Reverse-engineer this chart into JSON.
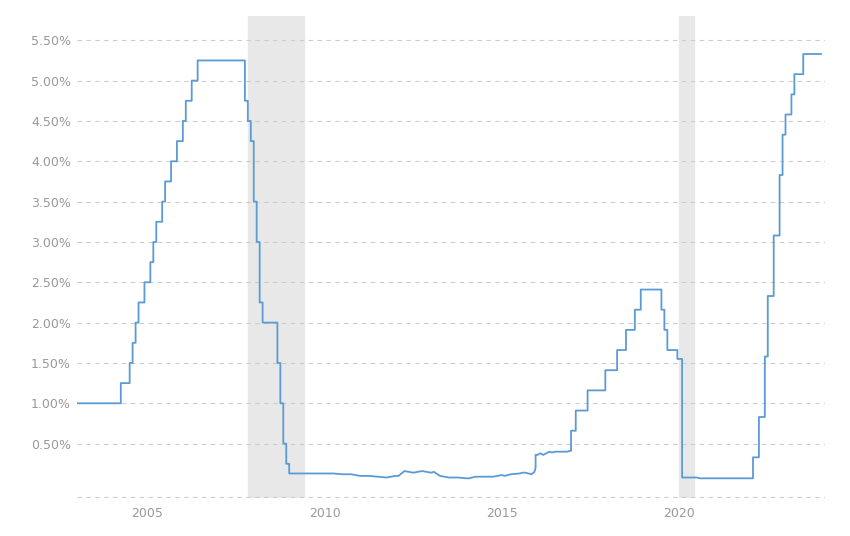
{
  "background_color": "#ffffff",
  "line_color": "#5b9bd5",
  "line_width": 1.3,
  "ylim": [
    -0.18,
    5.8
  ],
  "xlim": [
    2003.0,
    2024.1
  ],
  "yticks": [
    0.5,
    1.0,
    1.5,
    2.0,
    2.5,
    3.0,
    3.5,
    4.0,
    4.5,
    5.0,
    5.5
  ],
  "xticks": [
    2005,
    2010,
    2015,
    2020
  ],
  "recession_1_start": 2007.83,
  "recession_1_end": 2009.42,
  "recession_2_start": 2020.0,
  "recession_2_end": 2020.42,
  "recession_color": "#e8e8e8",
  "grid_color": "#cccccc",
  "tick_label_color": "#999999",
  "rate_data": [
    [
      2003.0,
      1.0
    ],
    [
      2003.01,
      1.0
    ],
    [
      2003.5,
      1.0
    ],
    [
      2003.5,
      1.0
    ],
    [
      2003.75,
      1.0
    ],
    [
      2003.75,
      1.0
    ],
    [
      2004.0,
      1.0
    ],
    [
      2004.0,
      1.0
    ],
    [
      2004.083,
      1.0
    ],
    [
      2004.083,
      1.0
    ],
    [
      2004.25,
      1.0
    ],
    [
      2004.25,
      1.25
    ],
    [
      2004.333,
      1.25
    ],
    [
      2004.333,
      1.25
    ],
    [
      2004.5,
      1.25
    ],
    [
      2004.5,
      1.5
    ],
    [
      2004.583,
      1.5
    ],
    [
      2004.583,
      1.75
    ],
    [
      2004.667,
      1.75
    ],
    [
      2004.667,
      2.0
    ],
    [
      2004.75,
      2.0
    ],
    [
      2004.75,
      2.25
    ],
    [
      2004.833,
      2.25
    ],
    [
      2004.833,
      2.25
    ],
    [
      2004.917,
      2.25
    ],
    [
      2004.917,
      2.5
    ],
    [
      2005.0,
      2.5
    ],
    [
      2005.0,
      2.5
    ],
    [
      2005.083,
      2.5
    ],
    [
      2005.083,
      2.75
    ],
    [
      2005.167,
      2.75
    ],
    [
      2005.167,
      3.0
    ],
    [
      2005.25,
      3.0
    ],
    [
      2005.25,
      3.25
    ],
    [
      2005.417,
      3.25
    ],
    [
      2005.417,
      3.5
    ],
    [
      2005.5,
      3.5
    ],
    [
      2005.5,
      3.75
    ],
    [
      2005.667,
      3.75
    ],
    [
      2005.667,
      4.0
    ],
    [
      2005.833,
      4.0
    ],
    [
      2005.833,
      4.25
    ],
    [
      2005.917,
      4.25
    ],
    [
      2005.917,
      4.25
    ],
    [
      2006.0,
      4.25
    ],
    [
      2006.0,
      4.5
    ],
    [
      2006.083,
      4.5
    ],
    [
      2006.083,
      4.75
    ],
    [
      2006.25,
      4.75
    ],
    [
      2006.25,
      5.0
    ],
    [
      2006.417,
      5.0
    ],
    [
      2006.417,
      5.25
    ],
    [
      2006.5,
      5.25
    ],
    [
      2006.5,
      5.25
    ],
    [
      2006.583,
      5.25
    ],
    [
      2006.583,
      5.25
    ],
    [
      2006.75,
      5.25
    ],
    [
      2006.75,
      5.25
    ],
    [
      2006.833,
      5.25
    ],
    [
      2006.833,
      5.25
    ],
    [
      2006.917,
      5.25
    ],
    [
      2006.917,
      5.25
    ],
    [
      2007.0,
      5.25
    ],
    [
      2007.0,
      5.25
    ],
    [
      2007.083,
      5.25
    ],
    [
      2007.083,
      5.25
    ],
    [
      2007.25,
      5.25
    ],
    [
      2007.25,
      5.25
    ],
    [
      2007.417,
      5.25
    ],
    [
      2007.417,
      5.25
    ],
    [
      2007.5,
      5.25
    ],
    [
      2007.5,
      5.25
    ],
    [
      2007.583,
      5.25
    ],
    [
      2007.583,
      5.25
    ],
    [
      2007.667,
      5.25
    ],
    [
      2007.667,
      5.25
    ],
    [
      2007.75,
      5.25
    ],
    [
      2007.75,
      5.25
    ],
    [
      2007.75,
      5.25
    ],
    [
      2007.75,
      4.75
    ],
    [
      2007.833,
      4.75
    ],
    [
      2007.833,
      4.5
    ],
    [
      2007.917,
      4.5
    ],
    [
      2007.917,
      4.25
    ],
    [
      2008.0,
      4.25
    ],
    [
      2008.0,
      3.5
    ],
    [
      2008.083,
      3.5
    ],
    [
      2008.083,
      3.0
    ],
    [
      2008.167,
      3.0
    ],
    [
      2008.167,
      2.25
    ],
    [
      2008.25,
      2.25
    ],
    [
      2008.25,
      2.0
    ],
    [
      2008.333,
      2.0
    ],
    [
      2008.333,
      2.0
    ],
    [
      2008.417,
      2.0
    ],
    [
      2008.417,
      2.0
    ],
    [
      2008.5,
      2.0
    ],
    [
      2008.5,
      2.0
    ],
    [
      2008.583,
      2.0
    ],
    [
      2008.583,
      2.0
    ],
    [
      2008.667,
      2.0
    ],
    [
      2008.667,
      1.5
    ],
    [
      2008.75,
      1.5
    ],
    [
      2008.75,
      1.0
    ],
    [
      2008.833,
      1.0
    ],
    [
      2008.833,
      0.5
    ],
    [
      2008.917,
      0.5
    ],
    [
      2008.917,
      0.25
    ],
    [
      2008.95,
      0.25
    ],
    [
      2008.95,
      0.25
    ],
    [
      2009.0,
      0.25
    ],
    [
      2009.0,
      0.13
    ],
    [
      2009.083,
      0.13
    ],
    [
      2009.083,
      0.13
    ],
    [
      2009.25,
      0.13
    ],
    [
      2009.5,
      0.13
    ],
    [
      2009.75,
      0.13
    ],
    [
      2010.0,
      0.13
    ],
    [
      2010.083,
      0.13
    ],
    [
      2010.25,
      0.13
    ],
    [
      2010.5,
      0.12
    ],
    [
      2010.75,
      0.12
    ],
    [
      2011.0,
      0.1
    ],
    [
      2011.083,
      0.1
    ],
    [
      2011.25,
      0.1
    ],
    [
      2011.5,
      0.09
    ],
    [
      2011.75,
      0.08
    ],
    [
      2012.0,
      0.1
    ],
    [
      2012.083,
      0.1
    ],
    [
      2012.25,
      0.16
    ],
    [
      2012.5,
      0.14
    ],
    [
      2012.75,
      0.16
    ],
    [
      2013.0,
      0.14
    ],
    [
      2013.083,
      0.15
    ],
    [
      2013.25,
      0.1
    ],
    [
      2013.5,
      0.08
    ],
    [
      2013.75,
      0.08
    ],
    [
      2014.0,
      0.07
    ],
    [
      2014.083,
      0.07
    ],
    [
      2014.25,
      0.09
    ],
    [
      2014.5,
      0.09
    ],
    [
      2014.75,
      0.09
    ],
    [
      2015.0,
      0.11
    ],
    [
      2015.083,
      0.1
    ],
    [
      2015.25,
      0.12
    ],
    [
      2015.5,
      0.13
    ],
    [
      2015.583,
      0.14
    ],
    [
      2015.667,
      0.14
    ],
    [
      2015.75,
      0.13
    ],
    [
      2015.833,
      0.12
    ],
    [
      2015.917,
      0.15
    ],
    [
      2015.95,
      0.2
    ],
    [
      2015.95,
      0.36
    ],
    [
      2016.0,
      0.36
    ],
    [
      2016.0,
      0.36
    ],
    [
      2016.083,
      0.38
    ],
    [
      2016.167,
      0.36
    ],
    [
      2016.25,
      0.38
    ],
    [
      2016.333,
      0.4
    ],
    [
      2016.417,
      0.39
    ],
    [
      2016.5,
      0.4
    ],
    [
      2016.583,
      0.4
    ],
    [
      2016.667,
      0.4
    ],
    [
      2016.75,
      0.4
    ],
    [
      2016.833,
      0.4
    ],
    [
      2016.917,
      0.41
    ],
    [
      2016.95,
      0.41
    ],
    [
      2016.95,
      0.66
    ],
    [
      2017.0,
      0.66
    ],
    [
      2017.083,
      0.66
    ],
    [
      2017.083,
      0.66
    ],
    [
      2017.083,
      0.91
    ],
    [
      2017.167,
      0.91
    ],
    [
      2017.25,
      0.91
    ],
    [
      2017.333,
      0.91
    ],
    [
      2017.417,
      0.91
    ],
    [
      2017.417,
      0.91
    ],
    [
      2017.417,
      1.16
    ],
    [
      2017.5,
      1.16
    ],
    [
      2017.583,
      1.16
    ],
    [
      2017.667,
      1.16
    ],
    [
      2017.75,
      1.16
    ],
    [
      2017.833,
      1.16
    ],
    [
      2017.917,
      1.16
    ],
    [
      2017.917,
      1.16
    ],
    [
      2017.917,
      1.41
    ],
    [
      2018.0,
      1.41
    ],
    [
      2018.083,
      1.41
    ],
    [
      2018.167,
      1.41
    ],
    [
      2018.25,
      1.41
    ],
    [
      2018.25,
      1.41
    ],
    [
      2018.25,
      1.66
    ],
    [
      2018.333,
      1.66
    ],
    [
      2018.417,
      1.66
    ],
    [
      2018.5,
      1.66
    ],
    [
      2018.5,
      1.66
    ],
    [
      2018.5,
      1.66
    ],
    [
      2018.5,
      1.91
    ],
    [
      2018.583,
      1.91
    ],
    [
      2018.667,
      1.91
    ],
    [
      2018.75,
      1.91
    ],
    [
      2018.75,
      1.91
    ],
    [
      2018.75,
      1.91
    ],
    [
      2018.75,
      2.16
    ],
    [
      2018.833,
      2.16
    ],
    [
      2018.917,
      2.16
    ],
    [
      2018.917,
      2.16
    ],
    [
      2018.917,
      2.41
    ],
    [
      2019.0,
      2.41
    ],
    [
      2019.083,
      2.41
    ],
    [
      2019.167,
      2.41
    ],
    [
      2019.25,
      2.41
    ],
    [
      2019.333,
      2.41
    ],
    [
      2019.417,
      2.41
    ],
    [
      2019.5,
      2.41
    ],
    [
      2019.5,
      2.41
    ],
    [
      2019.5,
      2.41
    ],
    [
      2019.5,
      2.16
    ],
    [
      2019.583,
      2.16
    ],
    [
      2019.583,
      2.16
    ],
    [
      2019.583,
      2.16
    ],
    [
      2019.583,
      1.91
    ],
    [
      2019.667,
      1.91
    ],
    [
      2019.667,
      1.91
    ],
    [
      2019.667,
      1.91
    ],
    [
      2019.667,
      1.66
    ],
    [
      2019.75,
      1.66
    ],
    [
      2019.833,
      1.66
    ],
    [
      2019.917,
      1.66
    ],
    [
      2019.917,
      1.66
    ],
    [
      2019.95,
      1.66
    ],
    [
      2019.95,
      1.55
    ],
    [
      2020.0,
      1.55
    ],
    [
      2020.0,
      1.55
    ],
    [
      2020.083,
      1.55
    ],
    [
      2020.083,
      0.08
    ],
    [
      2020.25,
      0.08
    ],
    [
      2020.333,
      0.08
    ],
    [
      2020.417,
      0.08
    ],
    [
      2020.5,
      0.08
    ],
    [
      2020.583,
      0.07
    ],
    [
      2020.667,
      0.07
    ],
    [
      2020.75,
      0.07
    ],
    [
      2020.833,
      0.07
    ],
    [
      2020.917,
      0.07
    ],
    [
      2021.0,
      0.07
    ],
    [
      2021.083,
      0.07
    ],
    [
      2021.25,
      0.07
    ],
    [
      2021.417,
      0.07
    ],
    [
      2021.5,
      0.07
    ],
    [
      2021.583,
      0.07
    ],
    [
      2021.667,
      0.07
    ],
    [
      2021.75,
      0.07
    ],
    [
      2021.833,
      0.07
    ],
    [
      2021.917,
      0.07
    ],
    [
      2022.0,
      0.07
    ],
    [
      2022.0,
      0.07
    ],
    [
      2022.083,
      0.07
    ],
    [
      2022.083,
      0.07
    ],
    [
      2022.083,
      0.33
    ],
    [
      2022.167,
      0.33
    ],
    [
      2022.25,
      0.33
    ],
    [
      2022.25,
      0.33
    ],
    [
      2022.25,
      0.83
    ],
    [
      2022.333,
      0.83
    ],
    [
      2022.417,
      0.83
    ],
    [
      2022.417,
      0.83
    ],
    [
      2022.417,
      1.58
    ],
    [
      2022.5,
      1.58
    ],
    [
      2022.5,
      1.58
    ],
    [
      2022.5,
      1.58
    ],
    [
      2022.5,
      2.33
    ],
    [
      2022.583,
      2.33
    ],
    [
      2022.583,
      2.33
    ],
    [
      2022.583,
      2.33
    ],
    [
      2022.583,
      2.33
    ],
    [
      2022.667,
      2.33
    ],
    [
      2022.667,
      2.33
    ],
    [
      2022.667,
      2.33
    ],
    [
      2022.667,
      3.08
    ],
    [
      2022.75,
      3.08
    ],
    [
      2022.833,
      3.08
    ],
    [
      2022.833,
      3.08
    ],
    [
      2022.833,
      3.83
    ],
    [
      2022.917,
      3.83
    ],
    [
      2022.917,
      3.83
    ],
    [
      2022.917,
      3.83
    ],
    [
      2022.917,
      4.33
    ],
    [
      2023.0,
      4.33
    ],
    [
      2023.0,
      4.33
    ],
    [
      2023.0,
      4.33
    ],
    [
      2023.0,
      4.58
    ],
    [
      2023.083,
      4.58
    ],
    [
      2023.167,
      4.58
    ],
    [
      2023.167,
      4.58
    ],
    [
      2023.167,
      4.83
    ],
    [
      2023.25,
      4.83
    ],
    [
      2023.25,
      4.83
    ],
    [
      2023.25,
      4.83
    ],
    [
      2023.25,
      5.08
    ],
    [
      2023.333,
      5.08
    ],
    [
      2023.417,
      5.08
    ],
    [
      2023.417,
      5.08
    ],
    [
      2023.417,
      5.08
    ],
    [
      2023.5,
      5.08
    ],
    [
      2023.5,
      5.08
    ],
    [
      2023.5,
      5.08
    ],
    [
      2023.5,
      5.33
    ],
    [
      2023.583,
      5.33
    ],
    [
      2023.667,
      5.33
    ],
    [
      2023.75,
      5.33
    ],
    [
      2023.833,
      5.33
    ],
    [
      2023.917,
      5.33
    ],
    [
      2024.0,
      5.33
    ]
  ]
}
